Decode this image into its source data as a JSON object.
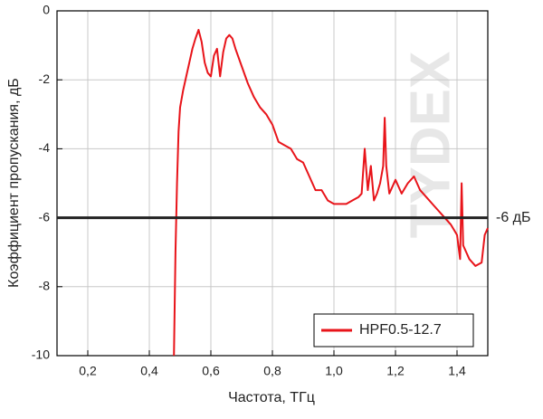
{
  "chart_data": {
    "type": "line",
    "xlabel": "Частота, ТГц",
    "ylabel": "Коэффициент пропускания, дБ",
    "xlim": [
      0.1,
      1.5
    ],
    "ylim": [
      -10,
      0
    ],
    "xticks": [
      {
        "value": 0.2,
        "label": "0,2"
      },
      {
        "value": 0.4,
        "label": "0,4"
      },
      {
        "value": 0.6,
        "label": "0,6"
      },
      {
        "value": 0.8,
        "label": "0,8"
      },
      {
        "value": 1.0,
        "label": "1,0"
      },
      {
        "value": 1.2,
        "label": "1,2"
      },
      {
        "value": 1.4,
        "label": "1,4"
      }
    ],
    "yticks": [
      0,
      -2,
      -4,
      -6,
      -8,
      -10
    ],
    "grid": true,
    "legend_position": "lower right",
    "hline": {
      "value": -6,
      "label": "-6 дБ",
      "color": "#222222"
    },
    "watermark": "TYDEX",
    "x": [
      0.48,
      0.485,
      0.49,
      0.495,
      0.5,
      0.51,
      0.52,
      0.53,
      0.54,
      0.55,
      0.56,
      0.57,
      0.58,
      0.59,
      0.6,
      0.61,
      0.62,
      0.63,
      0.64,
      0.65,
      0.66,
      0.67,
      0.68,
      0.7,
      0.72,
      0.74,
      0.76,
      0.78,
      0.8,
      0.82,
      0.84,
      0.86,
      0.88,
      0.9,
      0.92,
      0.94,
      0.96,
      0.98,
      1.0,
      1.02,
      1.04,
      1.06,
      1.08,
      1.09,
      1.1,
      1.11,
      1.12,
      1.13,
      1.14,
      1.15,
      1.16,
      1.165,
      1.17,
      1.18,
      1.2,
      1.22,
      1.24,
      1.26,
      1.28,
      1.3,
      1.32,
      1.34,
      1.36,
      1.38,
      1.4,
      1.41,
      1.415,
      1.42,
      1.44,
      1.46,
      1.48,
      1.49,
      1.5
    ],
    "series": [
      {
        "name": "HPF0.5-12.7",
        "color": "#e8141a",
        "values": [
          -10,
          -7,
          -5,
          -3.5,
          -2.8,
          -2.3,
          -1.9,
          -1.5,
          -1.1,
          -0.8,
          -0.55,
          -0.9,
          -1.5,
          -1.8,
          -1.9,
          -1.3,
          -1.1,
          -1.9,
          -1.2,
          -0.8,
          -0.7,
          -0.8,
          -1.1,
          -1.6,
          -2.1,
          -2.5,
          -2.8,
          -3.0,
          -3.3,
          -3.8,
          -3.9,
          -4.0,
          -4.3,
          -4.4,
          -4.8,
          -5.2,
          -5.2,
          -5.5,
          -5.6,
          -5.6,
          -5.6,
          -5.5,
          -5.4,
          -5.3,
          -4.0,
          -5.2,
          -4.5,
          -5.5,
          -5.3,
          -5.0,
          -4.5,
          -3.1,
          -4.5,
          -5.3,
          -4.9,
          -5.3,
          -5.0,
          -4.8,
          -5.2,
          -5.4,
          -5.6,
          -5.8,
          -6.0,
          -6.2,
          -6.5,
          -7.2,
          -5.0,
          -6.8,
          -7.2,
          -7.4,
          -7.3,
          -6.5,
          -6.3
        ]
      }
    ]
  }
}
